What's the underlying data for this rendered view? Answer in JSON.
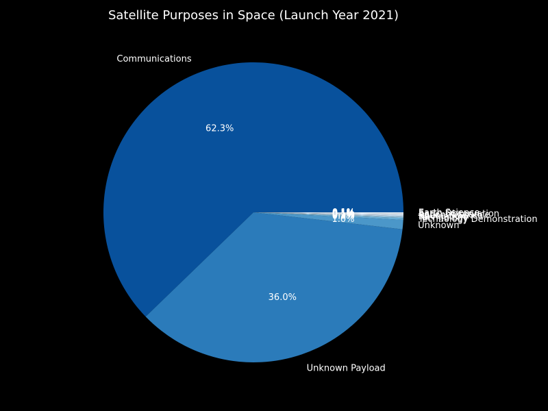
{
  "chart_data": {
    "type": "pie",
    "title": "Satellite Purposes in Space (Launch Year 2021)",
    "categories": [
      "Communications",
      "Unknown Payload",
      "Unknown",
      "Technology Demonstration",
      "Technology",
      "Navigation",
      "Space Science",
      "Reconnaissance",
      "Earth Observation",
      "Earth Science"
    ],
    "values": [
      62.3,
      36.0,
      1.0,
      0.2,
      0.1,
      0.1,
      0.1,
      0.1,
      0.1,
      0.1
    ],
    "value_labels": [
      "62.3%",
      "36.0%",
      "1.0%",
      "0.2%",
      "0.1%",
      "0.1%",
      "0.1%",
      "0.1%",
      "0.1%",
      "0.1%"
    ],
    "colors": [
      "#08519c",
      "#2b7bba",
      "#4b97c9",
      "#6aaed6",
      "#8cc0dd",
      "#abcfe5",
      "#c6dbef",
      "#d6e6f4",
      "#e3eef9",
      "#f0f6fc"
    ],
    "start_angle_deg": 0,
    "direction": "counterclockwise",
    "legend": "none",
    "background": "#000000",
    "text_color": "#ffffff"
  }
}
